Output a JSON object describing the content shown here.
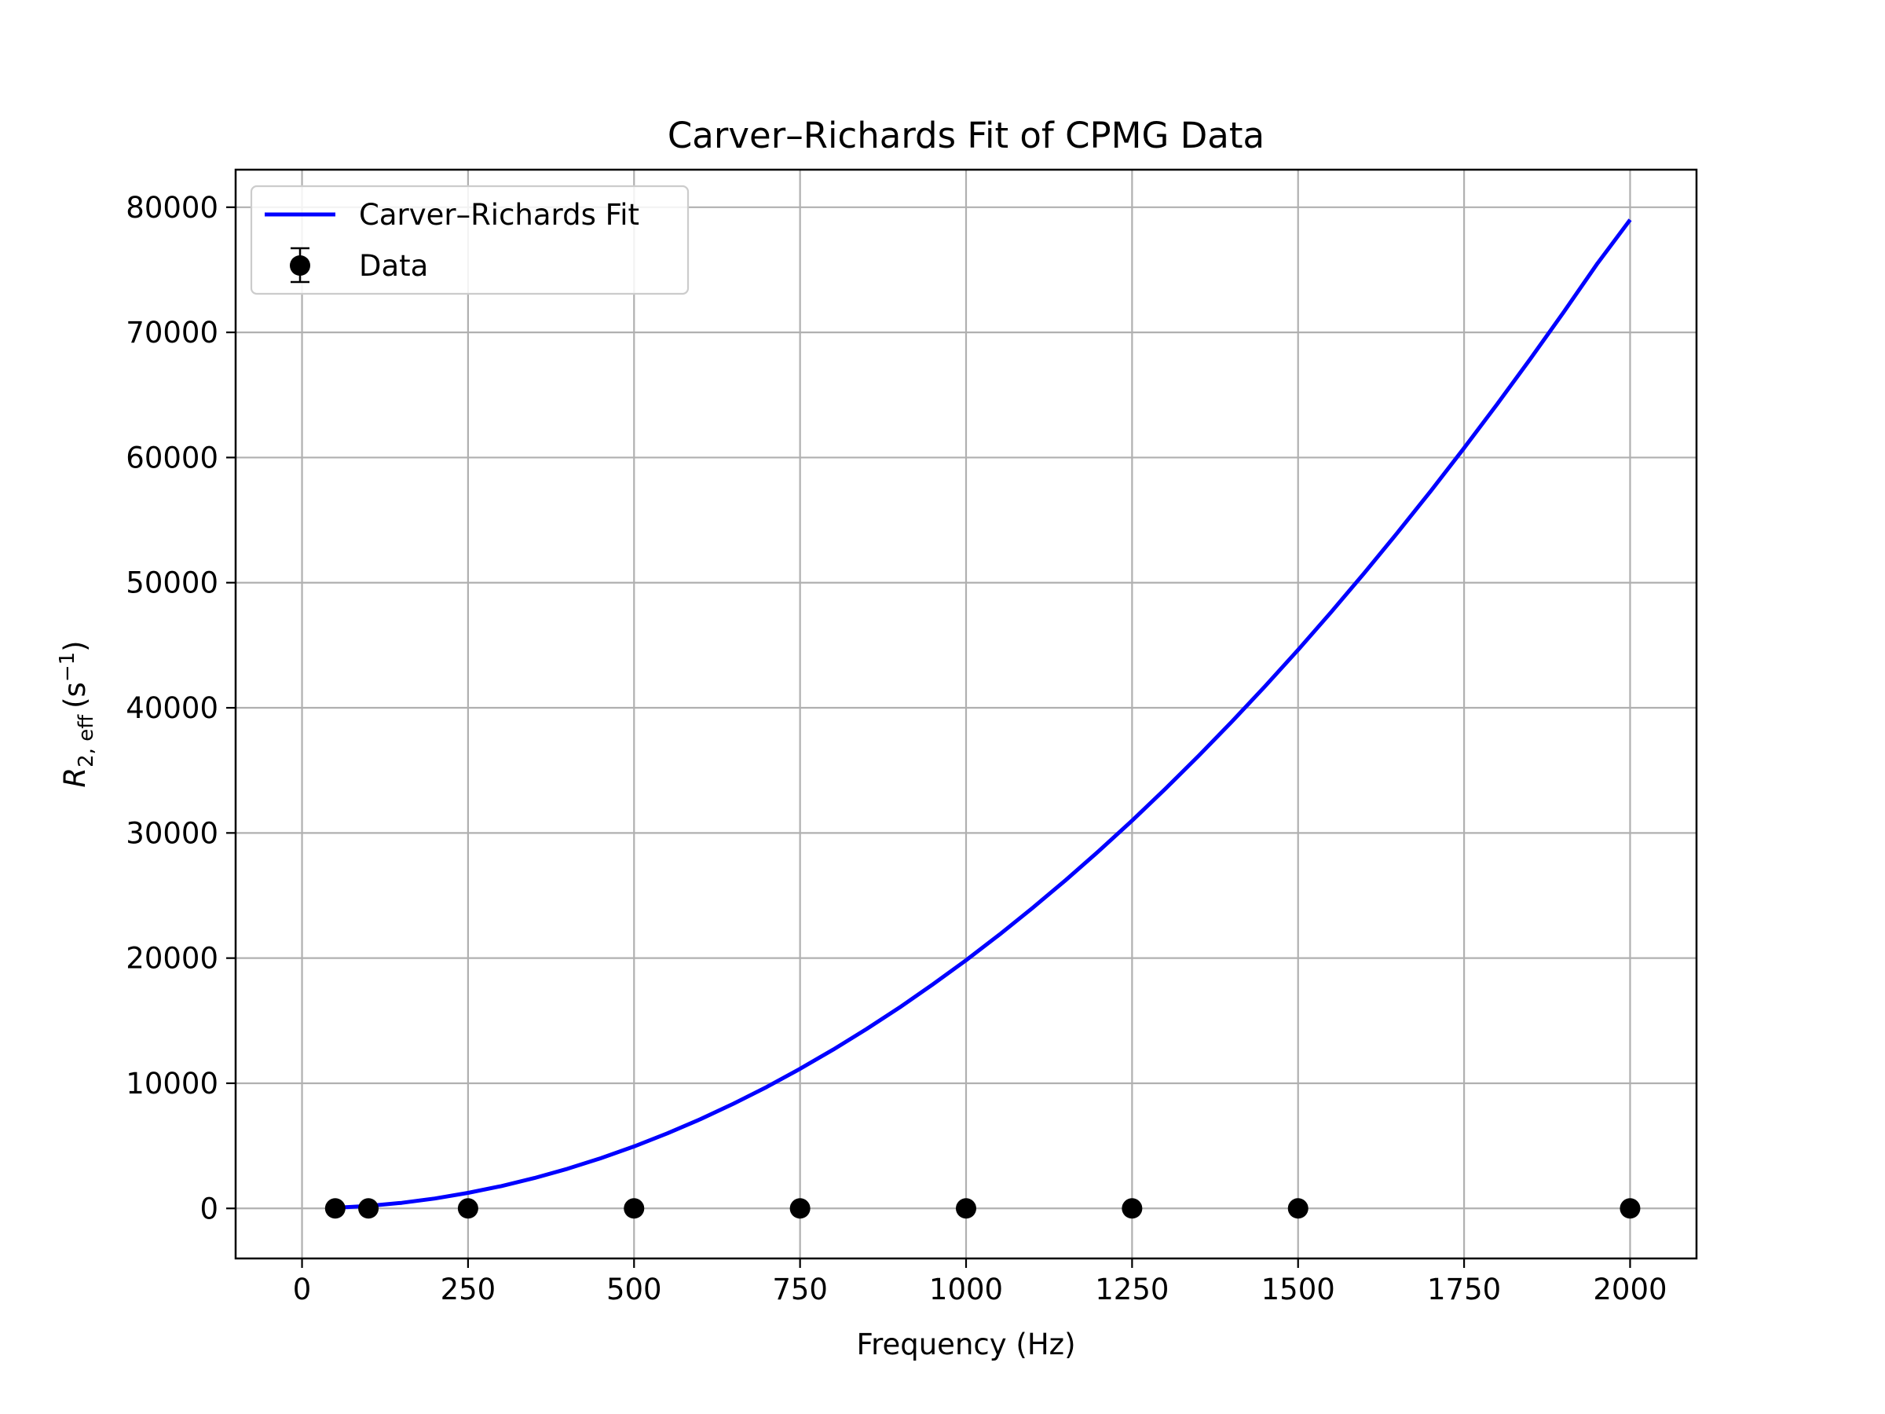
{
  "chart_data": {
    "type": "line",
    "title": "Carver–Richards Fit of CPMG Data",
    "xlabel": "Frequency (Hz)",
    "ylabel": {
      "symbol": "R",
      "subscript": "2, eff",
      "unit_prefix": "(s",
      "unit_exp": "−1",
      "unit_suffix": ")"
    },
    "xlim": [
      -100,
      2100
    ],
    "ylim": [
      -4000,
      83000
    ],
    "xticks": [
      0,
      250,
      500,
      750,
      1000,
      1250,
      1500,
      1750,
      2000
    ],
    "yticks": [
      0,
      10000,
      20000,
      30000,
      40000,
      50000,
      60000,
      70000,
      80000
    ],
    "grid": true,
    "legend_position": "upper left",
    "series": [
      {
        "name": "Carver–Richards Fit",
        "kind": "line",
        "color": "#0000ff",
        "x": [
          50,
          100,
          150,
          200,
          250,
          300,
          350,
          400,
          450,
          500,
          550,
          600,
          650,
          700,
          750,
          800,
          850,
          900,
          950,
          1000,
          1050,
          1100,
          1150,
          1200,
          1250,
          1300,
          1350,
          1400,
          1450,
          1500,
          1550,
          1600,
          1650,
          1700,
          1750,
          1800,
          1850,
          1900,
          1950,
          2000
        ],
        "y": [
          50,
          200,
          445,
          790,
          1240,
          1780,
          2430,
          3170,
          4010,
          4950,
          5990,
          7130,
          8370,
          9710,
          11150,
          12690,
          14330,
          16060,
          17900,
          19830,
          21870,
          24000,
          26230,
          28560,
          30990,
          33520,
          36150,
          38880,
          41710,
          44630,
          47660,
          50790,
          54010,
          57330,
          60760,
          64280,
          67900,
          71620,
          75450,
          79000
        ]
      },
      {
        "name": "Data",
        "kind": "errorbar-points",
        "color": "#000000",
        "x": [
          50,
          100,
          250,
          500,
          750,
          1000,
          1250,
          1500,
          2000
        ],
        "y": [
          0,
          0,
          0,
          0,
          0,
          0,
          0,
          0,
          0
        ]
      }
    ]
  }
}
